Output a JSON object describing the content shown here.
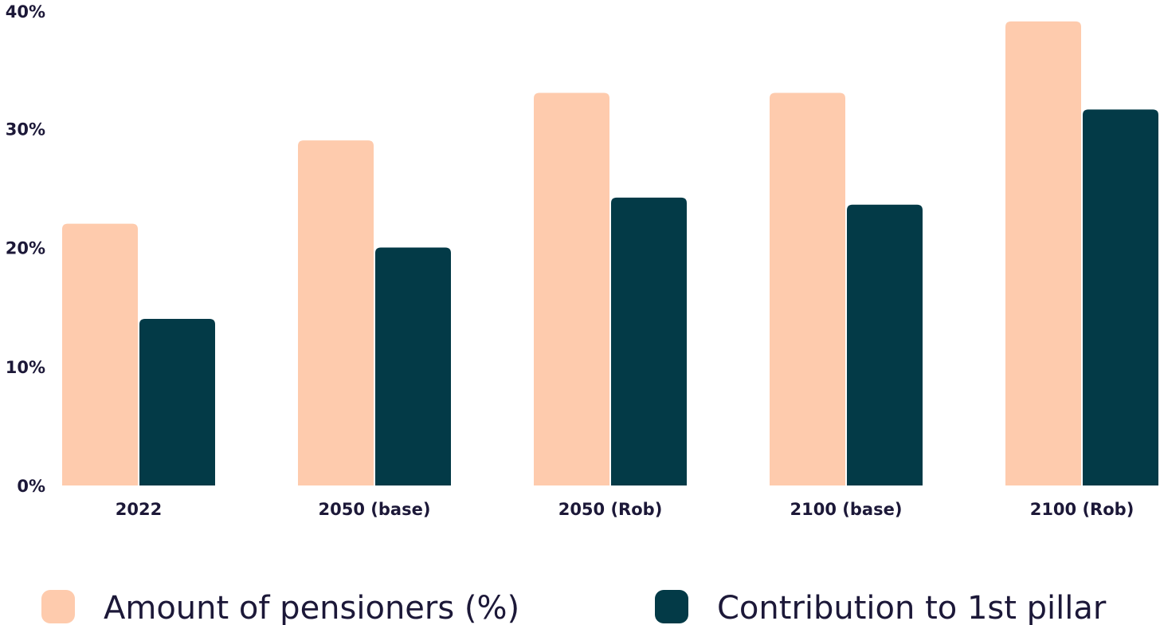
{
  "chart_data": {
    "type": "bar",
    "categories": [
      "2022",
      "2050 (base)",
      "2050 (Rob)",
      "2100 (base)",
      "2100 (Rob)"
    ],
    "series": [
      {
        "name": "Amount of pensioners (%)",
        "color": "#fecbad",
        "values": [
          22,
          29,
          33,
          33,
          39
        ]
      },
      {
        "name": "Contribution to 1st pillar",
        "color": "#033a47",
        "values": [
          14,
          20,
          24.2,
          23.6,
          31.6
        ]
      }
    ],
    "yticks": [
      "0%",
      "10%",
      "20%",
      "30%",
      "40%"
    ],
    "ylim": [
      0,
      40
    ],
    "grid": false,
    "legend_position": "bottom"
  }
}
